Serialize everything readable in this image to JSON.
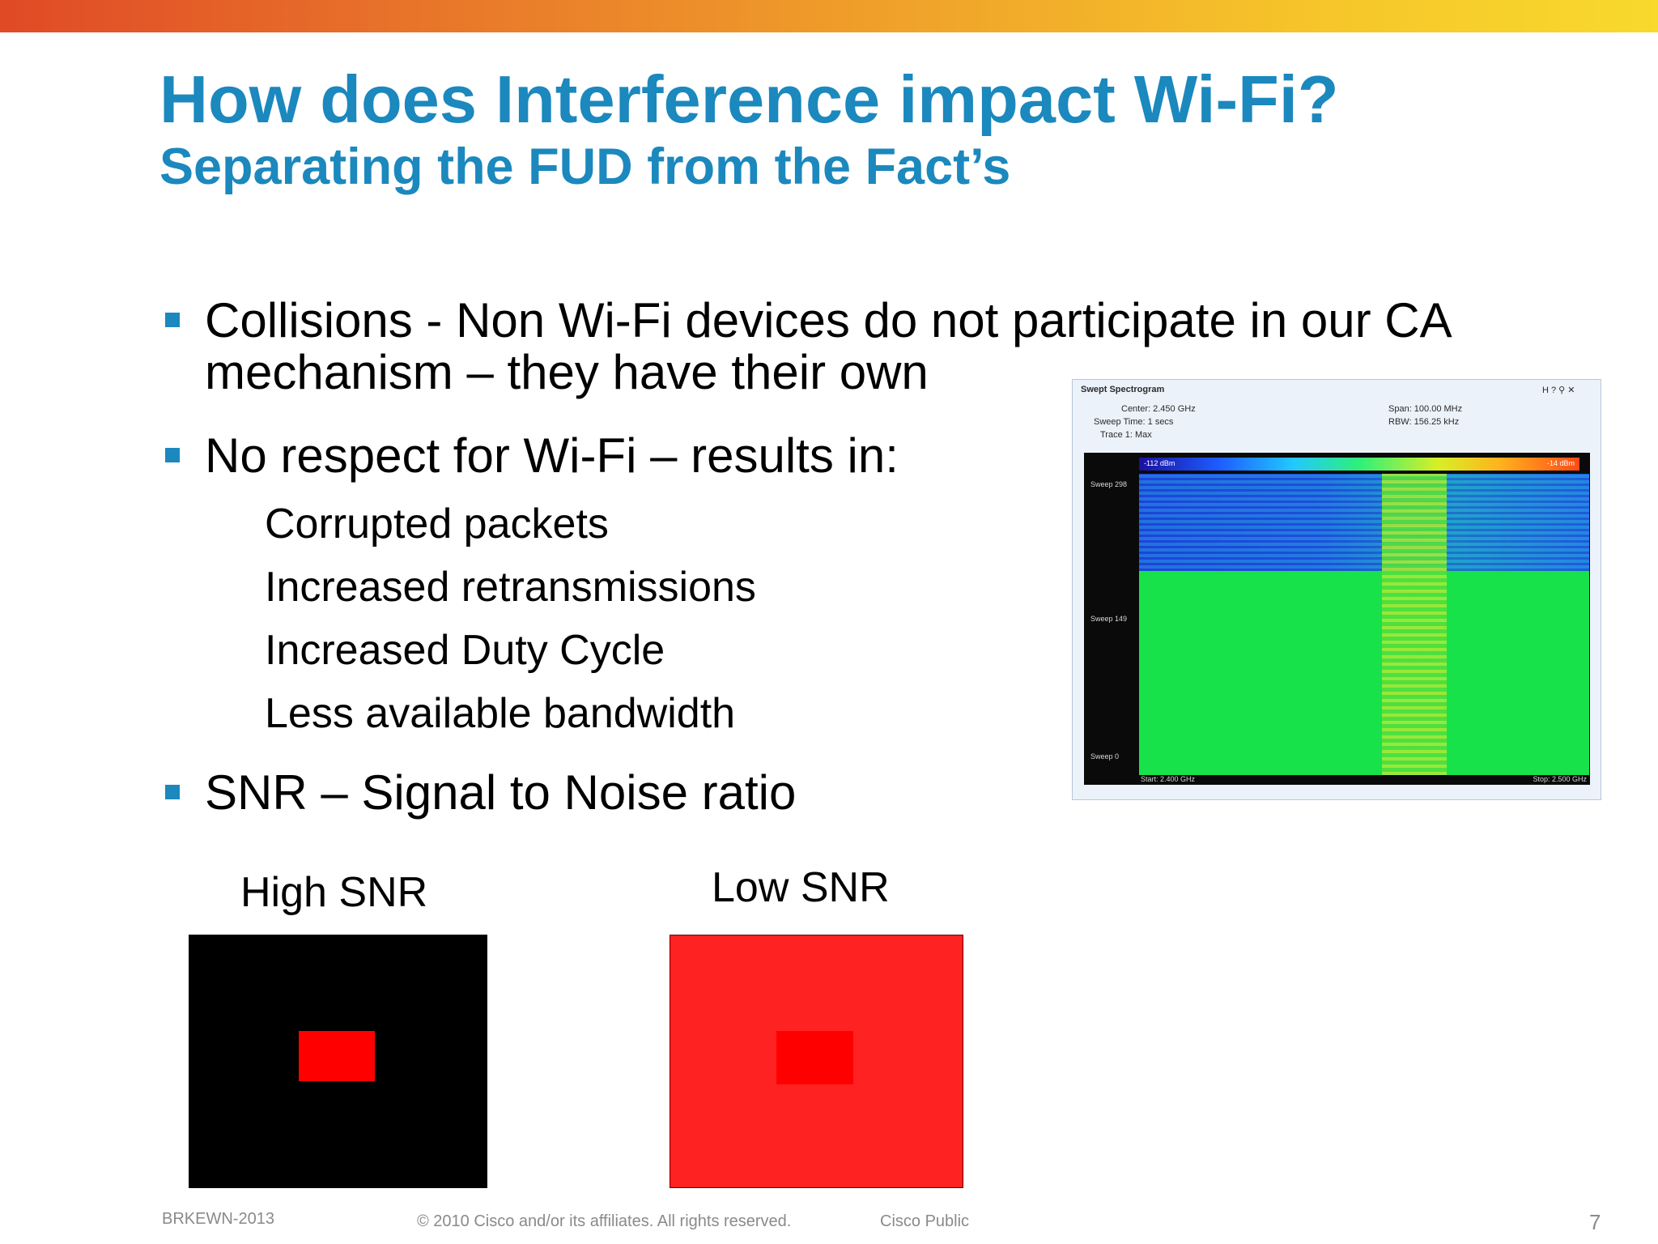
{
  "slide": {
    "title": "How does Interference impact Wi-Fi?",
    "subtitle": "Separating the FUD from the Fact’s",
    "bullets": [
      {
        "line1": "Collisions  - Non Wi-Fi devices do not participate in our CA",
        "line2": "mechanism – they have their own"
      },
      {
        "line1": "No respect for Wi-Fi – results in:"
      },
      {
        "line1": "SNR – Signal to Noise ratio"
      }
    ],
    "subitems": [
      "Corrupted packets",
      "Increased retransmissions",
      "Increased Duty Cycle",
      "Less available bandwidth"
    ],
    "snr": {
      "high_label": "High SNR",
      "low_label": "Low SNR"
    },
    "colors": {
      "accent": "#1b88be",
      "high_bg": "#000000",
      "high_signal": "#ff0000",
      "low_bg": "#ff2222",
      "low_signal": "#ff0000"
    }
  },
  "spectrogram": {
    "title": "Swept Spectrogram",
    "center": "Center: 2.450 GHz",
    "sweep_time": "Sweep Time: 1 secs",
    "trace": "Trace 1: Max",
    "span": "Span: 100.00 MHz",
    "rbw": "RBW: 156.25 kHz",
    "scale_min": "-112 dBm",
    "scale_max": "-14 dBm",
    "sweep_top": "Sweep 298",
    "sweep_mid": "Sweep 149",
    "sweep_bottom": "Sweep 0",
    "start": "Start: 2.400 GHz",
    "stop": "Stop: 2.500 GHz",
    "controls": "H ? ⚲ ✕"
  },
  "footer": {
    "session": "BRKEWN-2013",
    "copyright": "© 2010 Cisco and/or its affiliates. All rights reserved.",
    "classification": "Cisco Public",
    "page": "7"
  }
}
